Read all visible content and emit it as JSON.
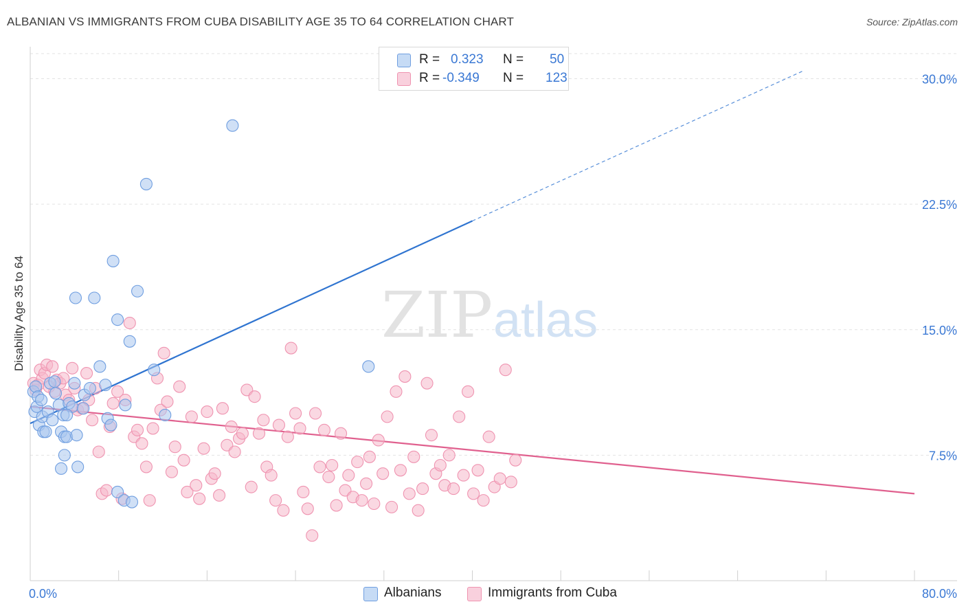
{
  "title": "ALBANIAN VS IMMIGRANTS FROM CUBA DISABILITY AGE 35 TO 64 CORRELATION CHART",
  "source": "Source: ZipAtlas.com",
  "watermark": {
    "zip": "ZIP",
    "atlas": "atlas"
  },
  "legend": {
    "r_label": "R =",
    "n_label": "N =",
    "albanians": {
      "r": "0.323",
      "n": "50"
    },
    "cuba": {
      "r": "-0.349",
      "n": "123"
    }
  },
  "bottom_legend": {
    "albanians": "Albanians",
    "cuba": "Immigrants from Cuba"
  },
  "colors": {
    "albanians_fill": "#a9c7ef",
    "albanians_stroke": "#6f9ee0",
    "albanians_line": "#2f74d0",
    "cuba_fill": "#f5b8cb",
    "cuba_stroke": "#ef93b0",
    "cuba_line": "#e0608e",
    "tick_label": "#3a78d4",
    "grid": "#e3e3e3"
  },
  "chart_data": {
    "type": "scatter",
    "title": "ALBANIAN VS IMMIGRANTS FROM CUBA DISABILITY AGE 35 TO 64 CORRELATION CHART",
    "xlabel": "",
    "ylabel": "Disability Age 35 to 64",
    "xlim": [
      0,
      80
    ],
    "ylim": [
      0,
      31.5
    ],
    "x_tick_labels": [
      "0.0%",
      "80.0%"
    ],
    "y_ticks": [
      7.5,
      15.0,
      22.5,
      30.0
    ],
    "y_tick_labels": [
      "7.5%",
      "15.0%",
      "22.5%",
      "30.0%"
    ],
    "grid": "horizontal dashed",
    "legend_position": "top-center",
    "series": [
      {
        "name": "Albanians",
        "points": [
          [
            0.3,
            11.3
          ],
          [
            0.4,
            10.1
          ],
          [
            0.5,
            11.6
          ],
          [
            0.6,
            10.4
          ],
          [
            0.7,
            11.0
          ],
          [
            0.8,
            9.3
          ],
          [
            1.0,
            10.8
          ],
          [
            1.1,
            9.8
          ],
          [
            1.2,
            8.9
          ],
          [
            1.4,
            8.9
          ],
          [
            1.6,
            10.1
          ],
          [
            1.8,
            11.8
          ],
          [
            2.0,
            9.6
          ],
          [
            2.2,
            11.9
          ],
          [
            2.3,
            11.2
          ],
          [
            2.6,
            10.5
          ],
          [
            2.8,
            8.9
          ],
          [
            3.0,
            9.9
          ],
          [
            3.1,
            8.6
          ],
          [
            3.1,
            7.5
          ],
          [
            3.3,
            8.6
          ],
          [
            3.5,
            10.6
          ],
          [
            3.8,
            10.4
          ],
          [
            4.0,
            11.8
          ],
          [
            4.2,
            8.7
          ],
          [
            4.3,
            6.8
          ],
          [
            4.8,
            10.3
          ],
          [
            4.9,
            11.1
          ],
          [
            5.4,
            11.5
          ],
          [
            2.8,
            6.7
          ],
          [
            3.3,
            9.9
          ],
          [
            4.1,
            16.9
          ],
          [
            5.8,
            16.9
          ],
          [
            6.3,
            12.8
          ],
          [
            6.8,
            11.7
          ],
          [
            7.0,
            9.7
          ],
          [
            7.3,
            9.3
          ],
          [
            7.5,
            19.1
          ],
          [
            7.9,
            5.3
          ],
          [
            8.5,
            4.8
          ],
          [
            9.7,
            17.3
          ],
          [
            9.0,
            14.3
          ],
          [
            8.6,
            10.5
          ],
          [
            9.2,
            4.7
          ],
          [
            10.5,
            23.7
          ],
          [
            11.2,
            12.6
          ],
          [
            12.2,
            9.9
          ],
          [
            18.3,
            27.2
          ],
          [
            30.6,
            12.8
          ],
          [
            7.9,
            15.6
          ]
        ],
        "trend": {
          "x_start": 0,
          "y_start": 9.4,
          "x_solid_end": 40,
          "y_solid_end": 21.5,
          "x_end": 80,
          "y_end": 33.5
        }
      },
      {
        "name": "Immigrants from Cuba",
        "points": [
          [
            0.3,
            11.8
          ],
          [
            0.5,
            11.4
          ],
          [
            0.7,
            11.7
          ],
          [
            0.9,
            12.6
          ],
          [
            1.1,
            12.1
          ],
          [
            1.3,
            12.4
          ],
          [
            1.5,
            12.9
          ],
          [
            1.7,
            11.6
          ],
          [
            2.0,
            12.8
          ],
          [
            2.2,
            11.3
          ],
          [
            2.4,
            12.0
          ],
          [
            2.7,
            11.8
          ],
          [
            3.0,
            12.1
          ],
          [
            3.2,
            11.1
          ],
          [
            3.5,
            10.8
          ],
          [
            3.8,
            12.7
          ],
          [
            4.0,
            11.5
          ],
          [
            4.3,
            10.2
          ],
          [
            4.7,
            10.3
          ],
          [
            5.1,
            12.4
          ],
          [
            5.3,
            10.8
          ],
          [
            5.6,
            9.6
          ],
          [
            5.9,
            11.5
          ],
          [
            6.2,
            7.7
          ],
          [
            6.5,
            5.2
          ],
          [
            6.9,
            5.4
          ],
          [
            7.2,
            9.2
          ],
          [
            7.5,
            10.6
          ],
          [
            7.9,
            11.3
          ],
          [
            8.3,
            4.9
          ],
          [
            8.6,
            10.8
          ],
          [
            9.0,
            15.4
          ],
          [
            9.4,
            8.6
          ],
          [
            9.7,
            9.0
          ],
          [
            10.1,
            8.2
          ],
          [
            10.5,
            6.8
          ],
          [
            10.8,
            4.8
          ],
          [
            11.1,
            9.1
          ],
          [
            11.5,
            12.1
          ],
          [
            11.8,
            10.2
          ],
          [
            12.1,
            13.6
          ],
          [
            12.4,
            10.7
          ],
          [
            12.8,
            6.5
          ],
          [
            13.1,
            8.0
          ],
          [
            13.5,
            11.6
          ],
          [
            13.9,
            7.2
          ],
          [
            14.2,
            5.3
          ],
          [
            14.6,
            9.8
          ],
          [
            15.0,
            5.7
          ],
          [
            15.3,
            4.9
          ],
          [
            15.7,
            7.9
          ],
          [
            16.0,
            10.1
          ],
          [
            16.4,
            6.1
          ],
          [
            16.7,
            6.4
          ],
          [
            17.1,
            5.1
          ],
          [
            17.4,
            10.3
          ],
          [
            17.8,
            8.1
          ],
          [
            18.2,
            9.2
          ],
          [
            18.5,
            7.7
          ],
          [
            18.9,
            8.5
          ],
          [
            19.2,
            8.8
          ],
          [
            19.6,
            11.4
          ],
          [
            20.0,
            5.6
          ],
          [
            20.3,
            11.0
          ],
          [
            20.7,
            8.8
          ],
          [
            21.1,
            9.6
          ],
          [
            21.4,
            6.8
          ],
          [
            21.8,
            6.3
          ],
          [
            22.2,
            4.8
          ],
          [
            22.5,
            9.3
          ],
          [
            22.9,
            4.2
          ],
          [
            23.3,
            8.6
          ],
          [
            23.6,
            13.9
          ],
          [
            24.0,
            10.0
          ],
          [
            24.4,
            9.1
          ],
          [
            24.7,
            5.3
          ],
          [
            25.1,
            4.3
          ],
          [
            25.5,
            2.7
          ],
          [
            25.8,
            10.0
          ],
          [
            26.2,
            6.8
          ],
          [
            26.6,
            9.0
          ],
          [
            27.0,
            6.2
          ],
          [
            27.3,
            6.9
          ],
          [
            27.7,
            4.5
          ],
          [
            28.1,
            8.8
          ],
          [
            28.5,
            5.4
          ],
          [
            28.8,
            6.3
          ],
          [
            29.2,
            5.0
          ],
          [
            29.6,
            7.1
          ],
          [
            30.0,
            4.8
          ],
          [
            30.4,
            5.8
          ],
          [
            30.7,
            7.4
          ],
          [
            31.1,
            4.6
          ],
          [
            31.5,
            8.4
          ],
          [
            31.9,
            6.4
          ],
          [
            32.3,
            9.8
          ],
          [
            32.7,
            4.4
          ],
          [
            33.1,
            11.3
          ],
          [
            33.5,
            6.6
          ],
          [
            33.9,
            12.2
          ],
          [
            34.3,
            5.2
          ],
          [
            34.7,
            7.4
          ],
          [
            35.1,
            4.2
          ],
          [
            35.5,
            5.5
          ],
          [
            35.9,
            11.8
          ],
          [
            36.3,
            8.7
          ],
          [
            36.7,
            6.4
          ],
          [
            37.1,
            6.9
          ],
          [
            37.5,
            5.7
          ],
          [
            37.9,
            7.5
          ],
          [
            38.3,
            5.5
          ],
          [
            38.8,
            9.8
          ],
          [
            39.2,
            6.3
          ],
          [
            39.6,
            11.3
          ],
          [
            40.1,
            5.2
          ],
          [
            40.5,
            6.6
          ],
          [
            41.0,
            4.8
          ],
          [
            41.5,
            8.6
          ],
          [
            42.0,
            5.6
          ],
          [
            42.5,
            6.1
          ],
          [
            43.0,
            12.6
          ],
          [
            43.5,
            5.9
          ],
          [
            43.9,
            7.2
          ]
        ],
        "trend": {
          "x_start": 0,
          "y_start": 10.4,
          "x_end": 80,
          "y_end": 5.2
        }
      }
    ]
  }
}
